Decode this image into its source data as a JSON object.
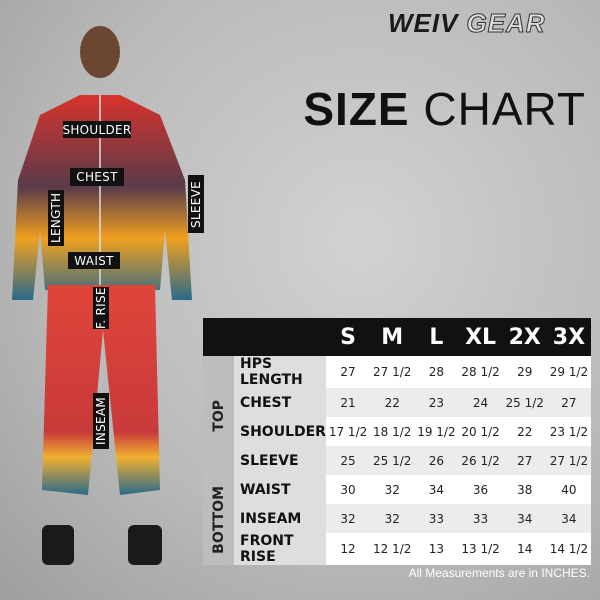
{
  "brand": {
    "part1": "WEIV",
    "part2": "GEAR"
  },
  "title": {
    "bold": "SIZE",
    "light": "CHART"
  },
  "figure_labels": {
    "shoulder": "SHOULDER",
    "chest": "CHEST",
    "waist": "WAIST",
    "length": "LENGTH",
    "sleeve": "SLEEVE",
    "front_rise": "F. RISE",
    "inseam": "INSEAM"
  },
  "table": {
    "sizes": [
      "S",
      "M",
      "L",
      "XL",
      "2X",
      "3X"
    ],
    "groups": {
      "top": "TOP",
      "bottom": "BOTTOM"
    },
    "rows": [
      {
        "label": "HPS LENGTH",
        "values": [
          "27",
          "27 1/2",
          "28",
          "28 1/2",
          "29",
          "29 1/2"
        ]
      },
      {
        "label": "CHEST",
        "values": [
          "21",
          "22",
          "23",
          "24",
          "25 1/2",
          "27"
        ]
      },
      {
        "label": "SHOULDER",
        "values": [
          "17 1/2",
          "18 1/2",
          "19 1/2",
          "20 1/2",
          "22",
          "23 1/2"
        ]
      },
      {
        "label": "SLEEVE",
        "values": [
          "25",
          "25 1/2",
          "26",
          "26 1/2",
          "27",
          "27 1/2"
        ]
      },
      {
        "label": "WAIST",
        "values": [
          "30",
          "32",
          "34",
          "36",
          "38",
          "40"
        ]
      },
      {
        "label": "INSEAM",
        "values": [
          "32",
          "32",
          "33",
          "33",
          "34",
          "34"
        ]
      },
      {
        "label": "FRONT RISE",
        "values": [
          "12",
          "12 1/2",
          "13",
          "13 1/2",
          "14",
          "14 1/2"
        ]
      }
    ]
  },
  "note": "All Measurements are in INCHES."
}
